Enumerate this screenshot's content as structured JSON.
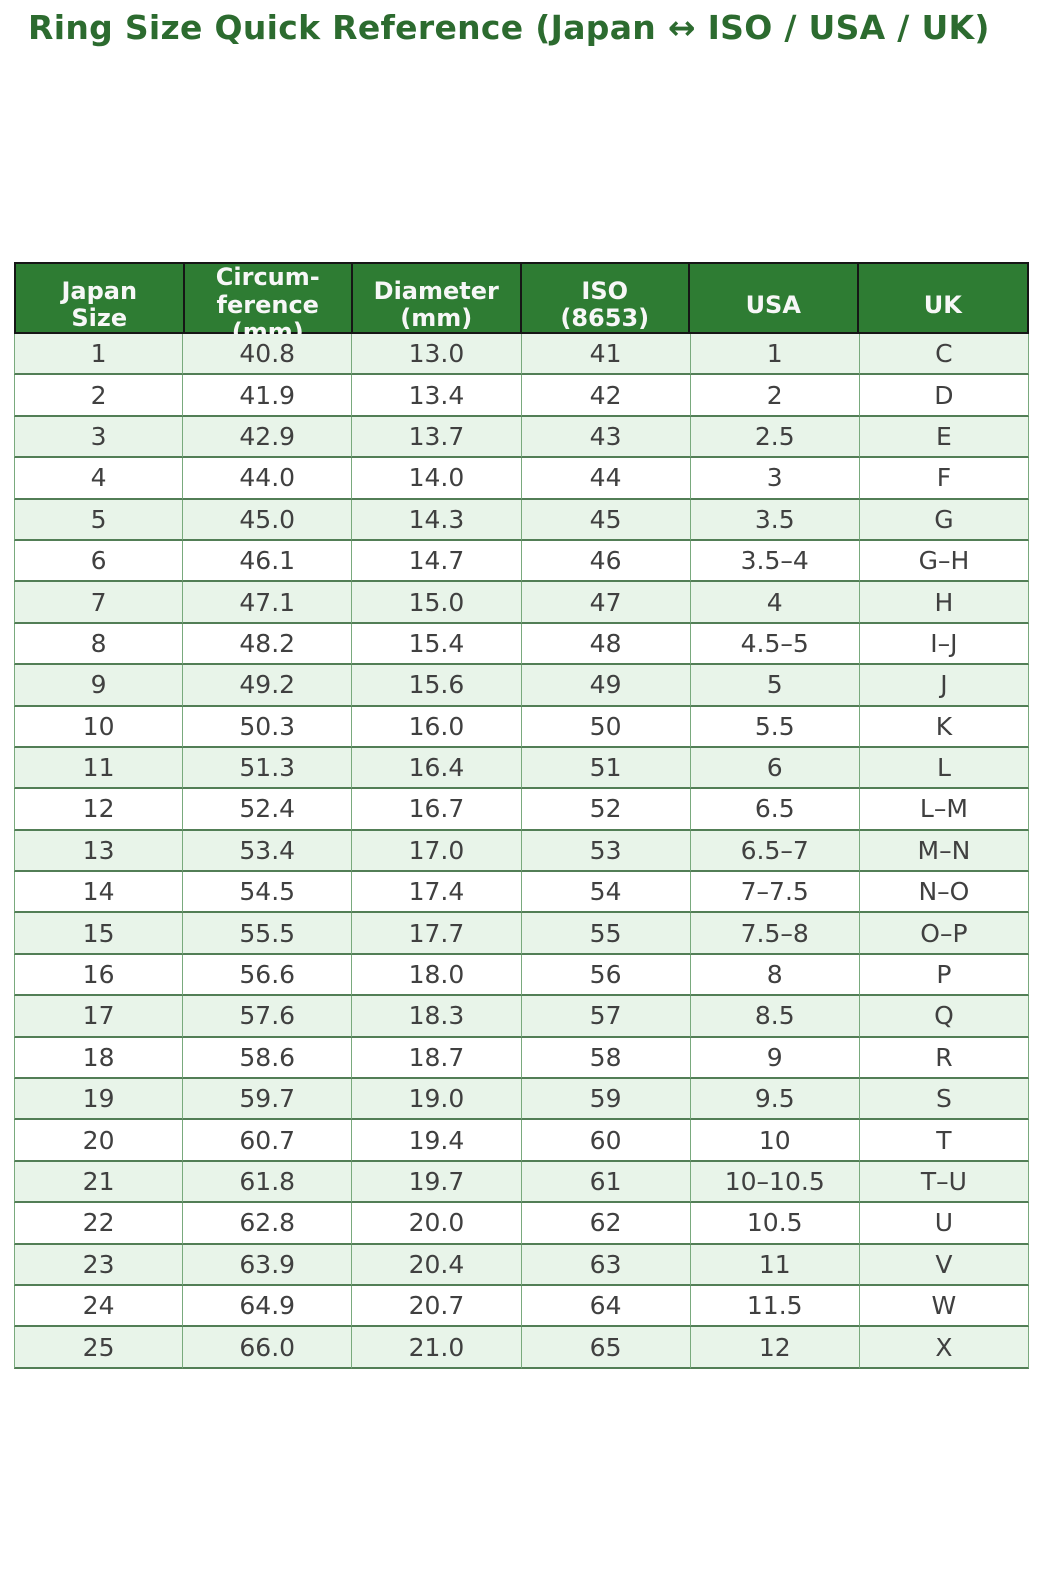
{
  "title": "Ring Size Quick Reference (Japan ↔ ISO / USA / UK)",
  "colors": {
    "page_bg": "#ffffff",
    "title_text": "#2c6b2f",
    "header_bg": "#2e7c33",
    "header_text": "#f7f7f7",
    "header_border": "#161616",
    "row_bg": "#ffffff",
    "row_alt_bg": "#e8f4e9",
    "grid_horizontal": "#527e56",
    "grid_vertical": "#79aa7d",
    "cell_text": "#404040"
  },
  "chart_data": {
    "type": "table",
    "title": "Ring Size Quick Reference (Japan ↔ ISO / USA / UK)",
    "columns": [
      "Japan Size",
      "Circumference (mm)",
      "Diameter (mm)",
      "ISO (8653)",
      "USA",
      "UK"
    ],
    "header_lines": [
      [
        "Japan",
        "Size"
      ],
      [
        "Circum-",
        "ference",
        "(mm)"
      ],
      [
        "Diameter",
        "(mm)"
      ],
      [
        "ISO",
        "(8653)"
      ],
      [
        "USA"
      ],
      [
        "UK"
      ]
    ],
    "rows": [
      [
        "1",
        "40.8",
        "13.0",
        "41",
        "1",
        "C"
      ],
      [
        "2",
        "41.9",
        "13.4",
        "42",
        "2",
        "D"
      ],
      [
        "3",
        "42.9",
        "13.7",
        "43",
        "2.5",
        "E"
      ],
      [
        "4",
        "44.0",
        "14.0",
        "44",
        "3",
        "F"
      ],
      [
        "5",
        "45.0",
        "14.3",
        "45",
        "3.5",
        "G"
      ],
      [
        "6",
        "46.1",
        "14.7",
        "46",
        "3.5–4",
        "G–H"
      ],
      [
        "7",
        "47.1",
        "15.0",
        "47",
        "4",
        "H"
      ],
      [
        "8",
        "48.2",
        "15.4",
        "48",
        "4.5–5",
        "I–J"
      ],
      [
        "9",
        "49.2",
        "15.6",
        "49",
        "5",
        "J"
      ],
      [
        "10",
        "50.3",
        "16.0",
        "50",
        "5.5",
        "K"
      ],
      [
        "11",
        "51.3",
        "16.4",
        "51",
        "6",
        "L"
      ],
      [
        "12",
        "52.4",
        "16.7",
        "52",
        "6.5",
        "L–M"
      ],
      [
        "13",
        "53.4",
        "17.0",
        "53",
        "6.5–7",
        "M–N"
      ],
      [
        "14",
        "54.5",
        "17.4",
        "54",
        "7–7.5",
        "N–O"
      ],
      [
        "15",
        "55.5",
        "17.7",
        "55",
        "7.5–8",
        "O–P"
      ],
      [
        "16",
        "56.6",
        "18.0",
        "56",
        "8",
        "P"
      ],
      [
        "17",
        "57.6",
        "18.3",
        "57",
        "8.5",
        "Q"
      ],
      [
        "18",
        "58.6",
        "18.7",
        "58",
        "9",
        "R"
      ],
      [
        "19",
        "59.7",
        "19.0",
        "59",
        "9.5",
        "S"
      ],
      [
        "20",
        "60.7",
        "19.4",
        "60",
        "10",
        "T"
      ],
      [
        "21",
        "61.8",
        "19.7",
        "61",
        "10–10.5",
        "T–U"
      ],
      [
        "22",
        "62.8",
        "20.0",
        "62",
        "10.5",
        "U"
      ],
      [
        "23",
        "63.9",
        "20.4",
        "63",
        "11",
        "V"
      ],
      [
        "24",
        "64.9",
        "20.7",
        "64",
        "11.5",
        "W"
      ],
      [
        "25",
        "66.0",
        "21.0",
        "65",
        "12",
        "X"
      ]
    ]
  }
}
